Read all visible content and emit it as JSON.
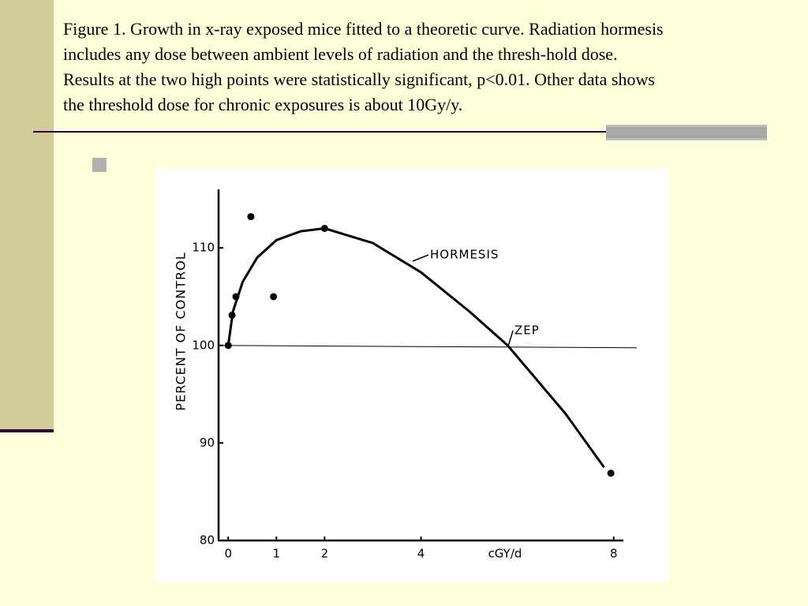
{
  "caption_lines": [
    "Figure 1. Growth in x-ray exposed mice fitted to a theoretic curve. Radiation hormesis",
    "includes any dose between ambient levels of radiation and the thresh-hold dose.",
    "Results at the two high points were statistically significant, p<0.01. Other data shows",
    "the threshold dose for chronic exposures is about 10Gy/y."
  ],
  "chart_data": {
    "type": "scatter",
    "ylabel": "PERCENT OF CONTROL",
    "xlabel": "cGY/d",
    "xlim": [
      -0.2,
      8.2
    ],
    "ylim": [
      80,
      116
    ],
    "xticks": [
      0,
      1,
      2,
      4,
      8
    ],
    "yticks": [
      80,
      90,
      100,
      110
    ],
    "color": "#000000",
    "points": {
      "x": [
        0,
        0.08,
        0.16,
        0.47,
        0.94,
        2,
        7.94
      ],
      "y": [
        100,
        103.1,
        105,
        113.2,
        105,
        112,
        86.9
      ]
    },
    "curve": {
      "x": [
        0,
        0.1,
        0.3,
        0.6,
        1,
        1.5,
        2,
        3,
        4,
        5,
        5.8,
        7,
        7.8
      ],
      "y": [
        100,
        103.5,
        106.5,
        109,
        110.8,
        111.7,
        112,
        110.5,
        107.5,
        103.5,
        100,
        93,
        87.5
      ]
    },
    "reference_line": 100,
    "annotations": [
      "HORMESIS",
      "ZEP"
    ]
  }
}
